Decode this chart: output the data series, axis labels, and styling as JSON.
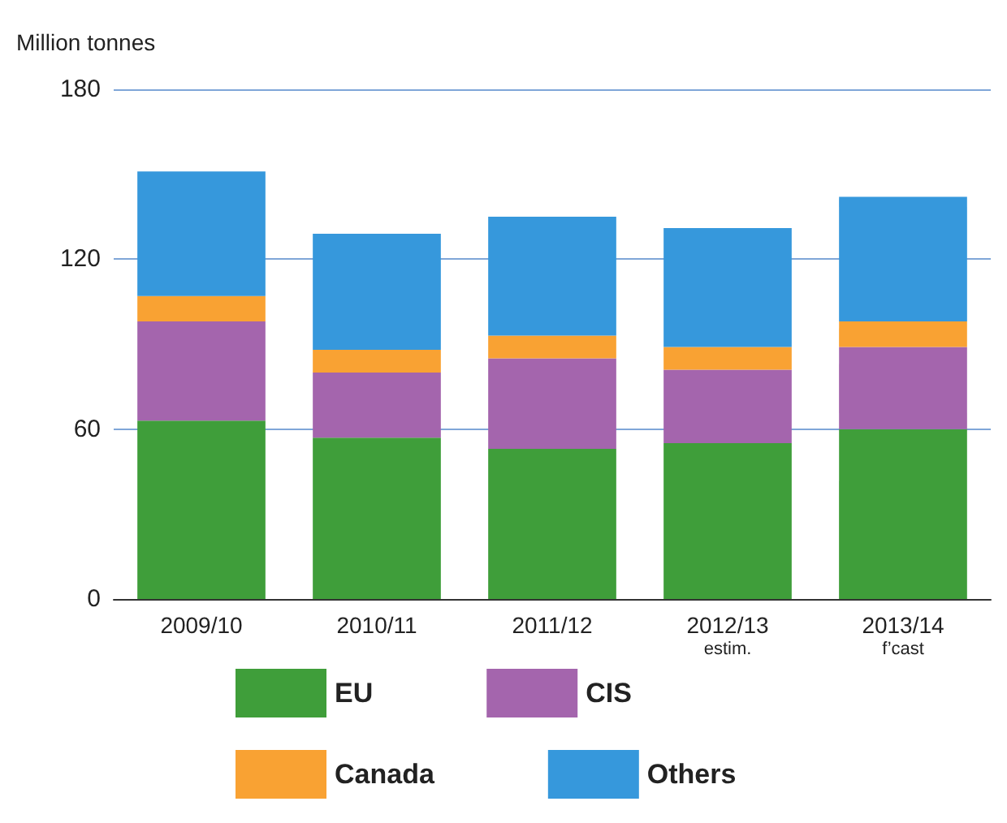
{
  "chart_data": {
    "type": "bar",
    "stacked": true,
    "ylabel": "Million tonnes",
    "categories": [
      "2009/10",
      "2010/11",
      "2011/12",
      "2012/13\nestim.",
      "2013/14\nf’cast"
    ],
    "series": [
      {
        "name": "EU",
        "color": "#3f9e3a",
        "values": [
          63,
          57,
          53,
          55,
          60
        ]
      },
      {
        "name": "CIS",
        "color": "#a465ad",
        "values": [
          35,
          23,
          32,
          26,
          29
        ]
      },
      {
        "name": "Canada",
        "color": "#f9a233",
        "values": [
          9,
          8,
          8,
          8,
          9
        ]
      },
      {
        "name": "Others",
        "color": "#3698dc",
        "values": [
          44,
          41,
          42,
          42,
          44
        ]
      }
    ],
    "ylim": [
      0,
      180
    ],
    "yticks": [
      0,
      60,
      120,
      180
    ],
    "grid": "y",
    "legend": "bottom"
  }
}
